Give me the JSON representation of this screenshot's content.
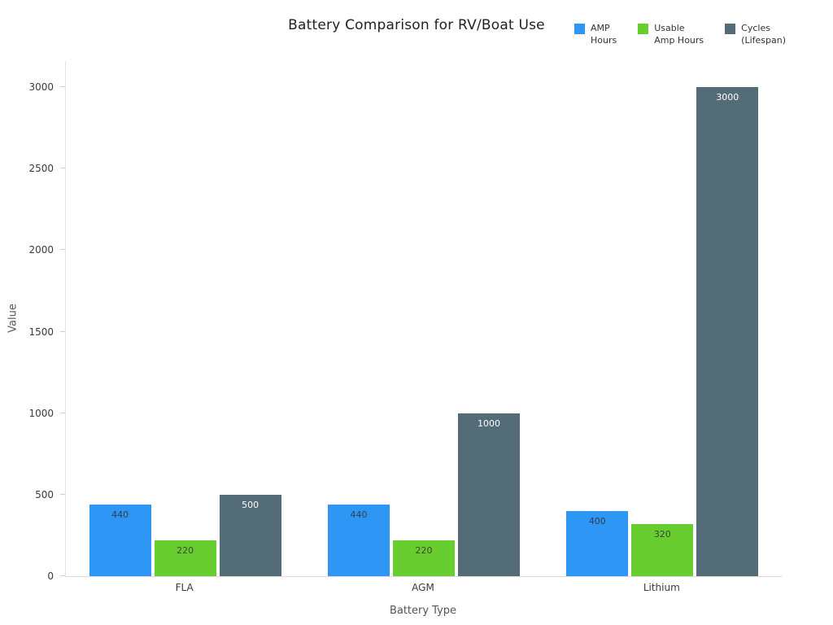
{
  "chart_data": {
    "type": "bar",
    "title": "Battery Comparison for RV/Boat Use",
    "xlabel": "Battery Type",
    "ylabel": "Value",
    "categories": [
      "FLA",
      "AGM",
      "Lithium"
    ],
    "series": [
      {
        "name": "AMP\nHours",
        "color": "#2E96F5",
        "label_color": "#2e3f4f",
        "values": [
          440,
          440,
          400
        ]
      },
      {
        "name": "Usable\nAmp Hours",
        "color": "#68CD2F",
        "label_color": "#3a4a33",
        "values": [
          220,
          220,
          320
        ]
      },
      {
        "name": "Cycles\n(Lifespan)",
        "color": "#546B78",
        "label_color": "#ffffff",
        "values": [
          500,
          1000,
          3000
        ]
      }
    ],
    "yticks": [
      0,
      500,
      1000,
      1500,
      2000,
      2500,
      3000
    ],
    "ylim": [
      0,
      3160
    ],
    "grid": false,
    "legend_position": "top-right",
    "plot_bgcolor": "#ffffff"
  }
}
